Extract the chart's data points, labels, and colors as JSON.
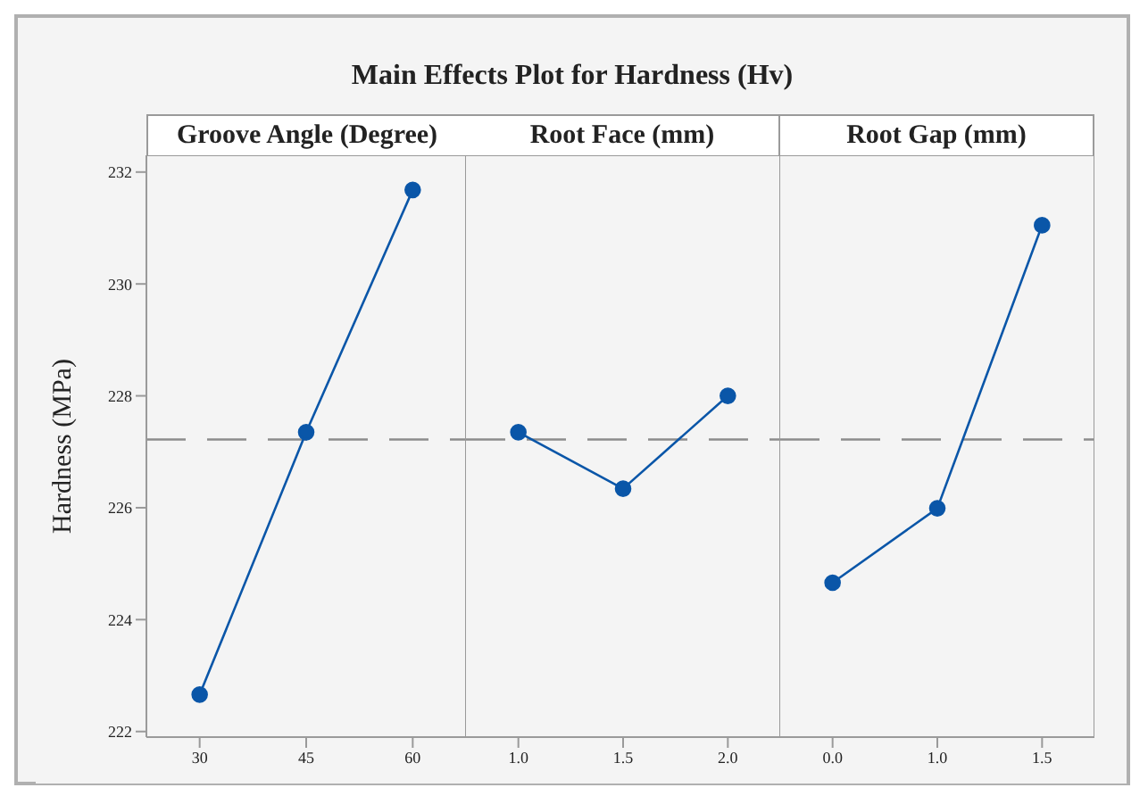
{
  "chart_data": [
    {
      "type": "line",
      "title": "Main Effects Plot for Hardness (Hv)",
      "subtitle": "Groove Angle (Degree)",
      "ylabel": "Hardness (MPa)",
      "categories": [
        "30",
        "45",
        "60"
      ],
      "series": [
        {
          "color": "#0a56a8",
          "values": [
            222.66,
            227.35,
            231.68
          ]
        }
      ],
      "ylim": [
        221.9,
        232.3
      ],
      "yticks": [
        222,
        224,
        226,
        228,
        230,
        232
      ],
      "marker": "circle",
      "grid": false,
      "ref_lines": [
        {
          "axis": "y",
          "value": 227.22,
          "color": "#8c8c8c",
          "line_style": "dashed"
        }
      ]
    },
    {
      "type": "line",
      "subtitle": "Root Face (mm)",
      "categories": [
        "1.0",
        "1.5",
        "2.0"
      ],
      "series": [
        {
          "color": "#0a56a8",
          "values": [
            227.35,
            226.34,
            228.0
          ]
        }
      ],
      "ylim": [
        221.9,
        232.3
      ],
      "tick_labels": "x",
      "marker": "circle",
      "grid": false,
      "ref_lines": [
        {
          "axis": "y",
          "value": 227.22,
          "color": "#8c8c8c",
          "line_style": "dashed"
        }
      ]
    },
    {
      "type": "line",
      "subtitle": "Root Gap (mm)",
      "categories": [
        "0.0",
        "1.0",
        "1.5"
      ],
      "series": [
        {
          "color": "#0a56a8",
          "values": [
            224.66,
            225.99,
            231.05
          ]
        }
      ],
      "ylim": [
        221.9,
        232.3
      ],
      "tick_labels": "x",
      "marker": "circle",
      "grid": false,
      "ref_lines": [
        {
          "axis": "y",
          "value": 227.22,
          "color": "#8c8c8c",
          "line_style": "dashed"
        }
      ]
    }
  ]
}
